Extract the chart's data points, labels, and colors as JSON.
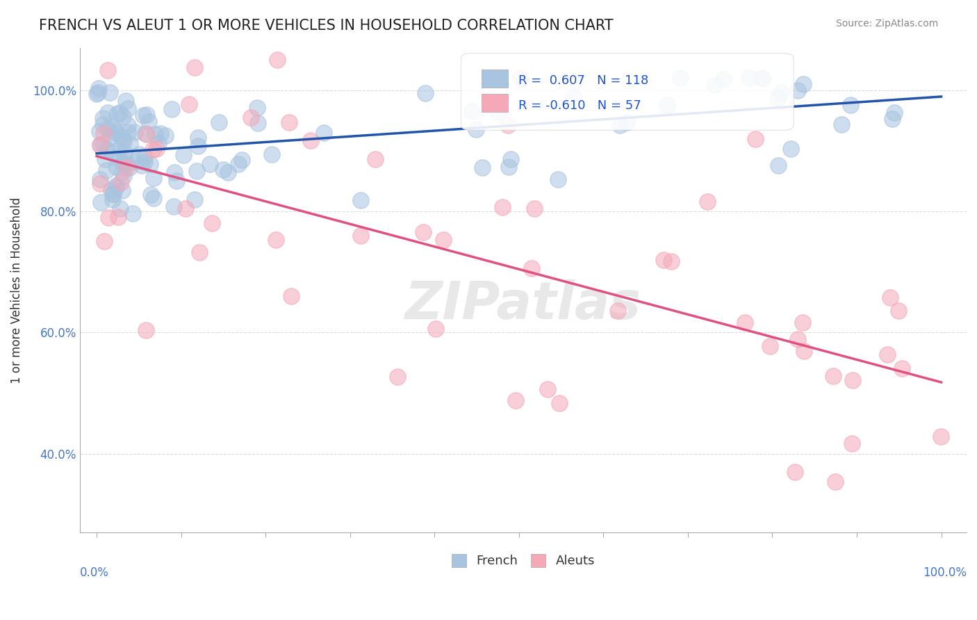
{
  "title": "FRENCH VS ALEUT 1 OR MORE VEHICLES IN HOUSEHOLD CORRELATION CHART",
  "source": "Source: ZipAtlas.com",
  "ylabel": "1 or more Vehicles in Household",
  "french_R": 0.607,
  "french_N": 118,
  "aleut_R": -0.61,
  "aleut_N": 57,
  "french_color": "#a8c4e0",
  "aleut_color": "#f4a8b8",
  "french_line_color": "#2255aa",
  "aleut_line_color": "#e05080",
  "background": "#ffffff",
  "grid_color": "#cccccc",
  "yticks": [
    0.4,
    0.6,
    0.8,
    1.0
  ],
  "ytick_labels": [
    "40.0%",
    "60.0%",
    "80.0%",
    "100.0%"
  ]
}
